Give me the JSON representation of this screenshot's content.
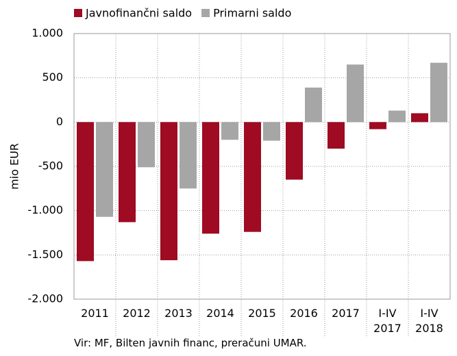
{
  "chart_data": {
    "type": "bar",
    "categories": [
      "2011",
      "2012",
      "2013",
      "2014",
      "2015",
      "2016",
      "2017",
      "I-IV 2017",
      "I-IV 2018"
    ],
    "series": [
      {
        "name": "Javnofinančni saldo",
        "color": "#9e0b22",
        "values": [
          -1570,
          -1130,
          -1560,
          -1260,
          -1240,
          -650,
          -300,
          -80,
          100
        ]
      },
      {
        "name": "Primarni saldo",
        "color": "#a6a6a6",
        "values": [
          -1070,
          -510,
          -750,
          -200,
          -210,
          390,
          650,
          130,
          670
        ]
      }
    ],
    "y_label": "mio EUR",
    "ylim": [
      -2000,
      1000
    ],
    "yticks": [
      {
        "value": -2000,
        "label": "-2.000"
      },
      {
        "value": -1500,
        "label": "-1.500"
      },
      {
        "value": -1000,
        "label": "-1.000"
      },
      -500,
      0,
      500,
      {
        "value": 1000,
        "label": "1.000"
      }
    ],
    "grid": true,
    "legend": "top-left",
    "source": "Vir: MF, Bilten javnih financ, preračuni UMAR."
  }
}
